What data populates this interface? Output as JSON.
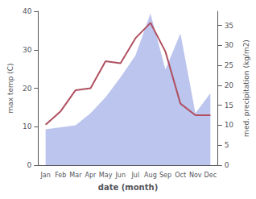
{
  "chart_data": {
    "type": "line",
    "categories": [
      "Jan",
      "Feb",
      "Mar",
      "Apr",
      "May",
      "Jun",
      "Jul",
      "Aug",
      "Sep",
      "Oct",
      "Nov",
      "Dec"
    ],
    "xlabel": "date (month)",
    "ylabel": "max temp (C)",
    "y2label": "med. precipitation (kg/m2)",
    "ylim": [
      0,
      40
    ],
    "yticks": [
      0,
      10,
      20,
      30,
      40
    ],
    "y2lim": [
      0,
      38.57
    ],
    "y2ticks": [
      0,
      5,
      10,
      15,
      20,
      25,
      30,
      35
    ],
    "grid": false,
    "series": [
      {
        "type": "area",
        "axis": "y2",
        "color": "#bcc5ee",
        "values": [
          9.0,
          9.5,
          10.0,
          13.0,
          17.0,
          22.0,
          27.5,
          38.0,
          24.0,
          33.0,
          13.0,
          18.0
        ]
      },
      {
        "type": "line",
        "color": "#b05060",
        "values": [
          10.5,
          14.0,
          19.5,
          20.0,
          27.0,
          26.5,
          33.0,
          37.0,
          29.5,
          16.0,
          13.0,
          13.0
        ]
      }
    ]
  }
}
